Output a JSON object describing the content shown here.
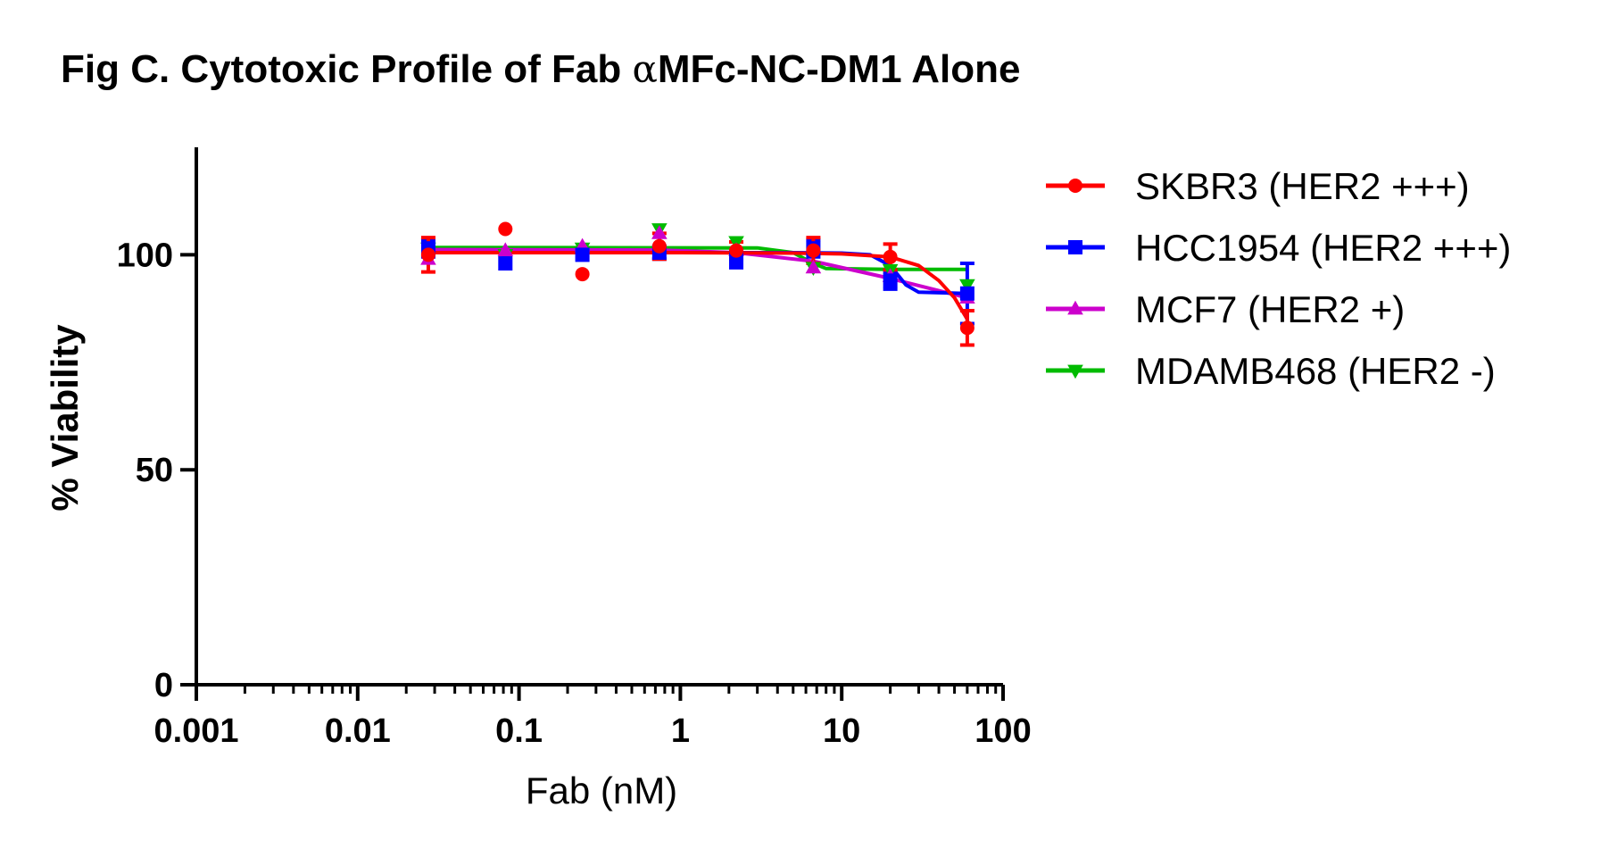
{
  "chart_data": {
    "type": "scatter",
    "title_prefix": "Fig C. Cytotoxic Profile of Fab ",
    "title_symbol": "α",
    "title_suffix": "MFc-NC-DM1 Alone",
    "xlabel": "Fab (nM)",
    "ylabel": "% Viability",
    "xscale": "log",
    "xlim": [
      0.001,
      100
    ],
    "ylim": [
      0,
      125
    ],
    "xticks": [
      "0.001",
      "0.01",
      "0.1",
      "1",
      "10",
      "100"
    ],
    "yticks": [
      "0",
      "50",
      "100"
    ],
    "grid": false,
    "legend_position": "right",
    "series": [
      {
        "name": "SKBR3 (HER2 +++)",
        "color": "#ff0000",
        "marker": "circle",
        "x": [
          0.0274,
          0.0823,
          0.247,
          0.741,
          2.22,
          6.67,
          20,
          60
        ],
        "y": [
          100,
          106,
          95.5,
          102,
          101,
          101,
          99.5,
          83
        ],
        "err": [
          4,
          0,
          0,
          3,
          2,
          3,
          3,
          4
        ],
        "fit": [
          [
            0.0274,
            100.5
          ],
          [
            1,
            100.5
          ],
          [
            5,
            100.4
          ],
          [
            10,
            100.2
          ],
          [
            20,
            99.5
          ],
          [
            30,
            97.5
          ],
          [
            40,
            94
          ],
          [
            50,
            90
          ],
          [
            60,
            85
          ]
        ]
      },
      {
        "name": "HCC1954 (HER2 +++)",
        "color": "#0000ff",
        "marker": "square",
        "x": [
          0.0274,
          0.0823,
          0.247,
          0.741,
          2.22,
          6.67,
          20,
          60
        ],
        "y": [
          101.5,
          98,
          100,
          100.5,
          99,
          101.5,
          94,
          91
        ],
        "err": [
          2,
          0,
          0,
          1.5,
          2,
          2,
          2,
          7
        ],
        "fit": [
          [
            0.0274,
            100.5
          ],
          [
            1,
            100.5
          ],
          [
            5,
            100.5
          ],
          [
            10,
            100.4
          ],
          [
            15,
            100
          ],
          [
            20,
            97.5
          ],
          [
            25,
            93
          ],
          [
            30,
            91.3
          ],
          [
            60,
            91
          ]
        ]
      },
      {
        "name": "MCF7 (HER2 +)",
        "color": "#cc00cc",
        "marker": "triangle-up",
        "x": [
          0.0274,
          0.0823,
          0.247,
          0.741,
          2.22,
          6.67,
          20,
          60
        ],
        "y": [
          99,
          101,
          102,
          105,
          101,
          97,
          95,
          90
        ],
        "err": [
          0,
          0,
          0,
          0,
          0,
          0,
          0,
          0
        ],
        "fit": [
          [
            0.0274,
            101.2
          ],
          [
            0.741,
            101.1
          ],
          [
            2.22,
            100.5
          ],
          [
            6.67,
            98.5
          ],
          [
            20,
            94.5
          ],
          [
            60,
            90
          ]
        ]
      },
      {
        "name": "MDAMB468 (HER2 -)",
        "color": "#00bb00",
        "marker": "triangle-down",
        "x": [
          0.0274,
          0.0823,
          0.247,
          0.741,
          2.22,
          6.67,
          20,
          60
        ],
        "y": [
          101.5,
          100,
          101.5,
          106,
          103,
          97,
          96.5,
          93
        ],
        "err": [
          0,
          0,
          0,
          0,
          0,
          0,
          0,
          0
        ],
        "fit": [
          [
            0.0274,
            101.7
          ],
          [
            3,
            101.6
          ],
          [
            5,
            100.5
          ],
          [
            6.67,
            98
          ],
          [
            8,
            96.8
          ],
          [
            20,
            96.6
          ],
          [
            60,
            96.6
          ]
        ]
      }
    ]
  }
}
